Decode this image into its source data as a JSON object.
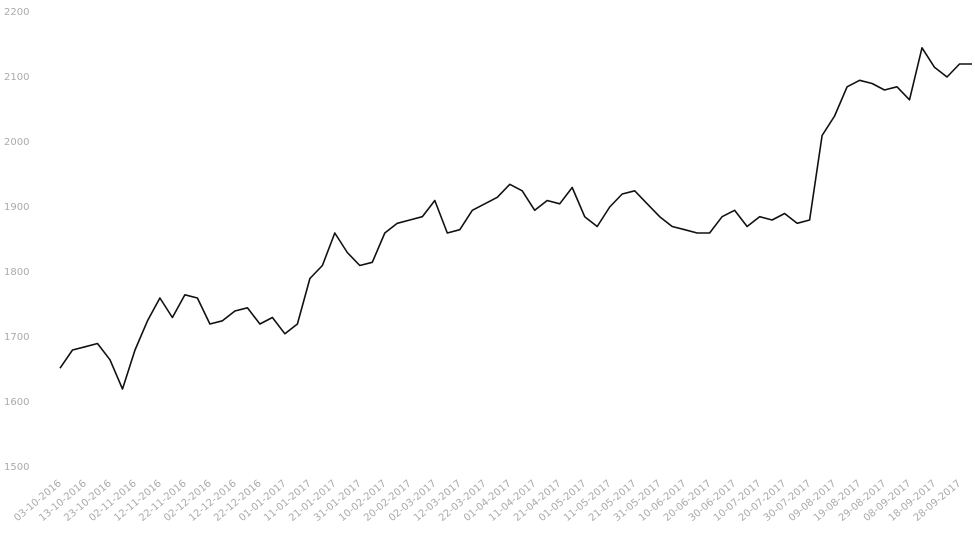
{
  "chart_data": {
    "type": "line",
    "categories": [
      "03-10-2016",
      null,
      "13-10-2016",
      null,
      "23-10-2016",
      null,
      "02-11-2016",
      null,
      "12-11-2016",
      null,
      "22-11-2016",
      null,
      "02-12-2016",
      null,
      "12-12-2016",
      null,
      "22-12-2016",
      null,
      "01-01-2017",
      null,
      "11-01-2017",
      null,
      "21-01-2017",
      null,
      "31-01-2017",
      null,
      "10-02-2017",
      null,
      "20-02-2017",
      null,
      "02-03-2017",
      null,
      "12-03-2017",
      null,
      "22-03-2017",
      null,
      "01-04-2017",
      null,
      "11-04-2017",
      null,
      "21-04-2017",
      null,
      "01-05-2017",
      null,
      "11-05-2017",
      null,
      "21-05-2017",
      null,
      "31-05-2017",
      null,
      "10-06-2017",
      null,
      "20-06-2017",
      null,
      "30-06-2017",
      null,
      "10-07-2017",
      null,
      "20-07-2017",
      null,
      "30-07-2017",
      null,
      "09-08-2017",
      null,
      "19-08-2017",
      null,
      "29-08-2017",
      null,
      "08-09-2017",
      null,
      "18-09-2017",
      null,
      "28-09-2017",
      null
    ],
    "values": [
      1652,
      1680,
      1685,
      1690,
      1665,
      1620,
      1680,
      1725,
      1760,
      1730,
      1765,
      1760,
      1720,
      1725,
      1740,
      1745,
      1720,
      1730,
      1705,
      1720,
      1790,
      1810,
      1860,
      1830,
      1810,
      1815,
      1860,
      1875,
      1880,
      1885,
      1910,
      1860,
      1865,
      1895,
      1905,
      1915,
      1935,
      1925,
      1895,
      1910,
      1905,
      1930,
      1885,
      1870,
      1900,
      1920,
      1925,
      1905,
      1885,
      1870,
      1865,
      1860,
      1860,
      1885,
      1895,
      1870,
      1885,
      1880,
      1890,
      1875,
      1880,
      2010,
      2040,
      2085,
      2095,
      2090,
      2080,
      2085,
      2065,
      2145,
      2115,
      2100,
      2120,
      2120
    ],
    "color": "#111111",
    "ylim": [
      1500,
      2200
    ],
    "yticks": [
      1500,
      1600,
      1700,
      1800,
      1900,
      2000,
      2100,
      2200
    ],
    "grid": false
  }
}
